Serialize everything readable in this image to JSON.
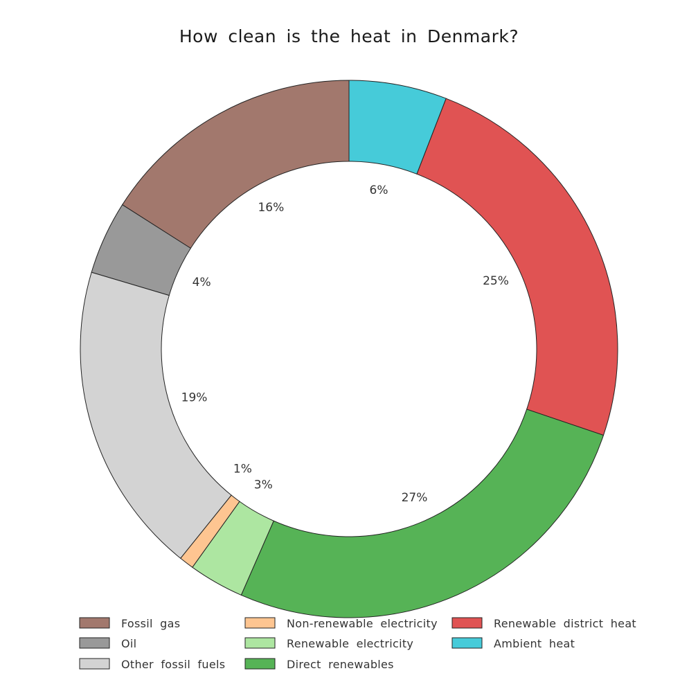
{
  "chart_data": {
    "type": "pie",
    "subtype": "donut",
    "title": "How clean is the heat in Denmark?",
    "legend_position": "bottom",
    "slices": [
      {
        "name": "Fossil gas",
        "value": 16,
        "label": "16%",
        "color": "#a2786d"
      },
      {
        "name": "Oil",
        "value": 4,
        "label": "4%",
        "color": "#999999"
      },
      {
        "name": "Other fossil fuels",
        "value": 19,
        "label": "19%",
        "color": "#d3d3d3"
      },
      {
        "name": "Non-renewable electricity",
        "value": 1,
        "label": "1%",
        "color": "#fec591"
      },
      {
        "name": "Renewable electricity",
        "value": 3,
        "label": "3%",
        "color": "#ade6a1"
      },
      {
        "name": "Direct renewables",
        "value": 27,
        "label": "27%",
        "color": "#56b356"
      },
      {
        "name": "Renewable district heat",
        "value": 25,
        "label": "25%",
        "color": "#e05353"
      },
      {
        "name": "Ambient heat",
        "value": 6,
        "label": "6%",
        "color": "#46cbd9"
      }
    ]
  }
}
